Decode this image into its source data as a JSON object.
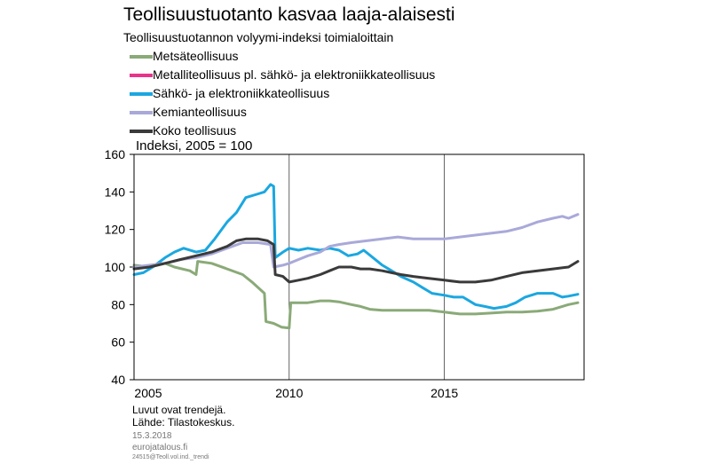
{
  "title": "Teollisuustuotanto kasvaa laaja-alaisesti",
  "subtitle": "Teollisuustuotannon volyymi-indeksi toimialoittain",
  "unit_label": "Indeksi, 2005 = 100",
  "footer": {
    "note": "Luvut ovat trendejä.",
    "source": "Lähde: Tilastokeskus.",
    "date": "15.3.2018",
    "site": "eurojatalous.fi",
    "code": "24515@Teoll.vol.ind._trendi"
  },
  "chart_data": {
    "type": "line",
    "title": "Teollisuustuotanto kasvaa laaja-alaisesti",
    "subtitle": "Teollisuustuotannon volyymi-indeksi toimialoittain",
    "ylabel": "Indeksi, 2005 = 100",
    "xlim": [
      2005,
      2019.5
    ],
    "ylim": [
      40,
      160
    ],
    "yticks": [
      "40",
      "60",
      "80",
      "100",
      "120",
      "140",
      "160"
    ],
    "xticks": [
      {
        "value": 2005,
        "label": "2005"
      },
      {
        "value": 2010,
        "label": "2010"
      },
      {
        "value": 2015,
        "label": "2015"
      }
    ],
    "legend_position": "top-left",
    "series": [
      {
        "name": "Metsäteollisuus",
        "color": "#8aaa78",
        "points": [
          [
            2005,
            101
          ],
          [
            2005.5,
            100
          ],
          [
            2006,
            102
          ],
          [
            2006.3,
            100
          ],
          [
            2006.8,
            98
          ],
          [
            2007,
            96
          ],
          [
            2007.05,
            103
          ],
          [
            2007.5,
            102
          ],
          [
            2008,
            99
          ],
          [
            2008.5,
            96
          ],
          [
            2008.8,
            92
          ],
          [
            2009.2,
            86
          ],
          [
            2009.25,
            71
          ],
          [
            2009.5,
            70
          ],
          [
            2009.75,
            68
          ],
          [
            2010,
            67.5
          ],
          [
            2010.05,
            81
          ],
          [
            2010.3,
            81
          ],
          [
            2010.6,
            81
          ],
          [
            2011,
            82
          ],
          [
            2011.3,
            82
          ],
          [
            2011.6,
            81.5
          ],
          [
            2012,
            80
          ],
          [
            2012.3,
            79
          ],
          [
            2012.6,
            77.5
          ],
          [
            2013,
            77
          ],
          [
            2013.5,
            77
          ],
          [
            2014,
            77
          ],
          [
            2014.5,
            77
          ],
          [
            2015,
            76
          ],
          [
            2015.5,
            75
          ],
          [
            2016,
            75
          ],
          [
            2016.5,
            75.5
          ],
          [
            2017,
            76
          ],
          [
            2017.5,
            76
          ],
          [
            2018,
            76.5
          ],
          [
            2018.5,
            77.5
          ],
          [
            2019,
            80
          ],
          [
            2019.3,
            81
          ]
        ]
      },
      {
        "name": "Metalliteollisuus pl. sähkö- ja elektroniikkateollisuus",
        "color": "#e8338a",
        "points": []
      },
      {
        "name": "Sähkö- ja elektroniikkateollisuus",
        "color": "#1ba7e0",
        "points": [
          [
            2005,
            96
          ],
          [
            2005.3,
            97
          ],
          [
            2005.6,
            100
          ],
          [
            2006,
            105
          ],
          [
            2006.3,
            108
          ],
          [
            2006.6,
            110
          ],
          [
            2007,
            108
          ],
          [
            2007.3,
            109
          ],
          [
            2007.6,
            115
          ],
          [
            2008,
            124
          ],
          [
            2008.3,
            129
          ],
          [
            2008.6,
            137
          ],
          [
            2009,
            139
          ],
          [
            2009.2,
            140
          ],
          [
            2009.4,
            144
          ],
          [
            2009.5,
            143
          ],
          [
            2009.55,
            105
          ],
          [
            2009.8,
            108
          ],
          [
            2010,
            110
          ],
          [
            2010.3,
            109
          ],
          [
            2010.6,
            110
          ],
          [
            2011,
            109
          ],
          [
            2011.3,
            110
          ],
          [
            2011.6,
            109
          ],
          [
            2011.9,
            106
          ],
          [
            2012.2,
            107
          ],
          [
            2012.4,
            109
          ],
          [
            2012.7,
            105
          ],
          [
            2013,
            101
          ],
          [
            2013.3,
            98
          ],
          [
            2013.6,
            95
          ],
          [
            2014,
            92
          ],
          [
            2014.3,
            89
          ],
          [
            2014.6,
            86
          ],
          [
            2015,
            85
          ],
          [
            2015.3,
            84
          ],
          [
            2015.6,
            84
          ],
          [
            2016,
            80
          ],
          [
            2016.3,
            79
          ],
          [
            2016.6,
            78
          ],
          [
            2017,
            79
          ],
          [
            2017.3,
            81
          ],
          [
            2017.6,
            84
          ],
          [
            2018,
            86
          ],
          [
            2018.5,
            86
          ],
          [
            2018.8,
            84
          ],
          [
            2019,
            84.5
          ],
          [
            2019.3,
            85.5
          ]
        ]
      },
      {
        "name": "Kemianteollisuus",
        "color": "#a9a9d9",
        "points": [
          [
            2005,
            100
          ],
          [
            2005.5,
            101
          ],
          [
            2006,
            102
          ],
          [
            2006.5,
            104
          ],
          [
            2007,
            105
          ],
          [
            2007.5,
            107
          ],
          [
            2008,
            110
          ],
          [
            2008.5,
            113
          ],
          [
            2009,
            113
          ],
          [
            2009.4,
            112
          ],
          [
            2009.5,
            100
          ],
          [
            2009.8,
            101
          ],
          [
            2010,
            102
          ],
          [
            2010.3,
            104
          ],
          [
            2010.6,
            106
          ],
          [
            2011,
            108
          ],
          [
            2011.3,
            111
          ],
          [
            2011.6,
            112
          ],
          [
            2012,
            113
          ],
          [
            2012.5,
            114
          ],
          [
            2013,
            115
          ],
          [
            2013.5,
            116
          ],
          [
            2014,
            115
          ],
          [
            2014.5,
            115
          ],
          [
            2015,
            115
          ],
          [
            2015.5,
            116
          ],
          [
            2016,
            117
          ],
          [
            2016.5,
            118
          ],
          [
            2017,
            119
          ],
          [
            2017.5,
            121
          ],
          [
            2018,
            124
          ],
          [
            2018.5,
            126
          ],
          [
            2018.8,
            127
          ],
          [
            2019,
            126
          ],
          [
            2019.3,
            128
          ]
        ]
      },
      {
        "name": "Koko teollisuus",
        "color": "#3a3a3a",
        "points": [
          [
            2005,
            99
          ],
          [
            2005.5,
            100
          ],
          [
            2006,
            102
          ],
          [
            2006.5,
            104
          ],
          [
            2007,
            106
          ],
          [
            2007.5,
            108
          ],
          [
            2008,
            111
          ],
          [
            2008.3,
            114
          ],
          [
            2008.6,
            115
          ],
          [
            2009,
            115
          ],
          [
            2009.3,
            114
          ],
          [
            2009.5,
            112
          ],
          [
            2009.55,
            96
          ],
          [
            2009.8,
            95
          ],
          [
            2010,
            92
          ],
          [
            2010.3,
            93
          ],
          [
            2010.6,
            94
          ],
          [
            2011,
            96
          ],
          [
            2011.3,
            98
          ],
          [
            2011.6,
            100
          ],
          [
            2012,
            100
          ],
          [
            2012.3,
            99
          ],
          [
            2012.6,
            99
          ],
          [
            2013,
            98
          ],
          [
            2013.3,
            97
          ],
          [
            2013.6,
            96
          ],
          [
            2014,
            95
          ],
          [
            2014.5,
            94
          ],
          [
            2015,
            93
          ],
          [
            2015.5,
            92
          ],
          [
            2016,
            92
          ],
          [
            2016.5,
            93
          ],
          [
            2017,
            95
          ],
          [
            2017.5,
            97
          ],
          [
            2018,
            98
          ],
          [
            2018.5,
            99
          ],
          [
            2019,
            100
          ],
          [
            2019.3,
            103
          ]
        ]
      }
    ]
  }
}
